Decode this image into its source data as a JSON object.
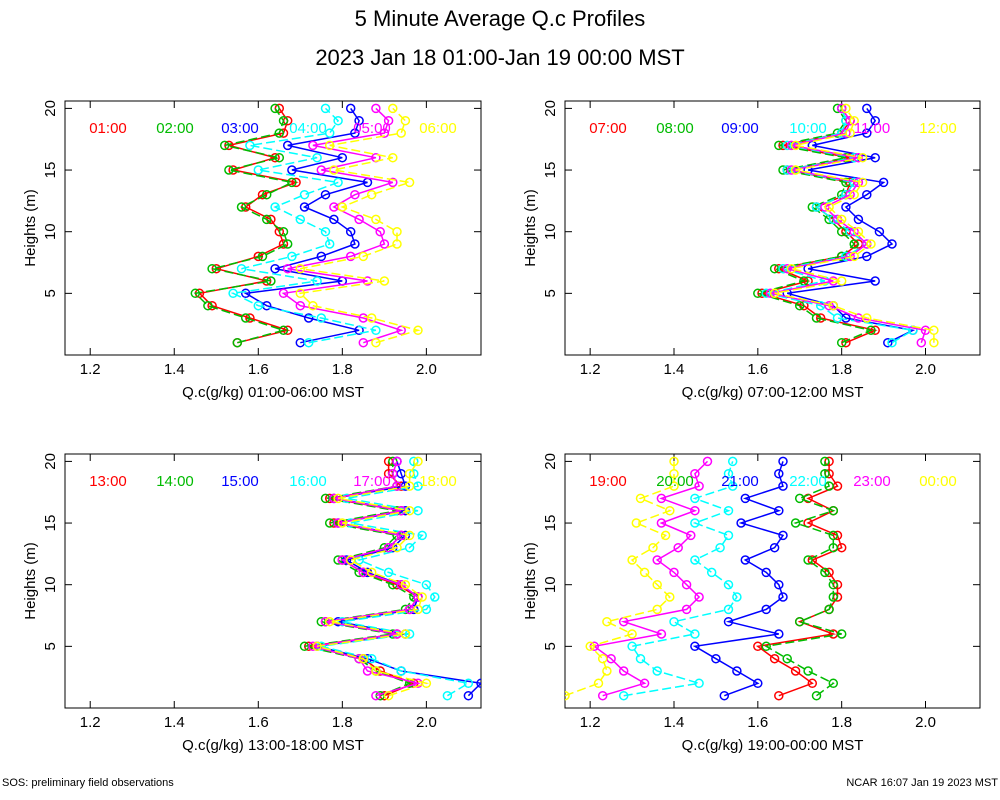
{
  "header": {
    "title": "5 Minute Average Q.c Profiles",
    "subtitle": "2023 Jan 18 01:00-Jan 19 00:00 MST"
  },
  "footer": {
    "left": "SOS: preliminary field observations",
    "right": "NCAR 16:07 Jan 19 2023 MST"
  },
  "colors": [
    "#ff0000",
    "#00bb00",
    "#0000ff",
    "#00ffff",
    "#ff00ff",
    "#ffff00"
  ],
  "chart_data": [
    {
      "type": "line",
      "xlabel": "Q.c(g/kg) 01:00-06:00 MST",
      "ylabel": "Heights (m)",
      "xlim": [
        1.14,
        2.13
      ],
      "ylim": [
        0,
        20.6
      ],
      "xticks": [
        "1.2",
        "1.4",
        "1.6",
        "1.8",
        "2.0"
      ],
      "yticks": [
        "5",
        "10",
        "15",
        "20"
      ],
      "heights": [
        1,
        2,
        3,
        4,
        5,
        6,
        7,
        8,
        9,
        10,
        11,
        12,
        13,
        14,
        15,
        16,
        17,
        18,
        19,
        20
      ],
      "series": [
        {
          "name": "01:00",
          "values": [
            1.55,
            1.67,
            1.58,
            1.49,
            1.46,
            1.62,
            1.5,
            1.6,
            1.66,
            1.65,
            1.63,
            1.57,
            1.61,
            1.69,
            1.54,
            1.64,
            1.53,
            1.66,
            1.67,
            1.65
          ]
        },
        {
          "name": "02:00",
          "values": [
            1.55,
            1.66,
            1.57,
            1.48,
            1.45,
            1.63,
            1.49,
            1.61,
            1.67,
            1.66,
            1.62,
            1.56,
            1.62,
            1.68,
            1.53,
            1.65,
            1.52,
            1.65,
            1.66,
            1.64
          ]
        },
        {
          "name": "03:00",
          "values": [
            1.7,
            1.84,
            1.72,
            1.62,
            1.57,
            1.8,
            1.64,
            1.75,
            1.83,
            1.82,
            1.78,
            1.71,
            1.76,
            1.86,
            1.68,
            1.8,
            1.67,
            1.83,
            1.84,
            1.82
          ]
        },
        {
          "name": "04:00",
          "values": [
            1.72,
            1.88,
            1.75,
            1.6,
            1.54,
            1.74,
            1.56,
            1.68,
            1.77,
            1.76,
            1.7,
            1.64,
            1.71,
            1.79,
            1.6,
            1.74,
            1.58,
            1.77,
            1.79,
            1.76
          ]
        },
        {
          "name": "05:00",
          "values": [
            1.85,
            1.94,
            1.85,
            1.7,
            1.66,
            1.86,
            1.67,
            1.82,
            1.9,
            1.89,
            1.84,
            1.78,
            1.83,
            1.92,
            1.75,
            1.88,
            1.73,
            1.9,
            1.91,
            1.88
          ]
        },
        {
          "name": "06:00",
          "values": [
            1.88,
            1.98,
            1.87,
            1.73,
            1.7,
            1.9,
            1.7,
            1.85,
            1.93,
            1.93,
            1.88,
            1.8,
            1.87,
            1.96,
            1.78,
            1.92,
            1.77,
            1.94,
            1.95,
            1.92
          ]
        }
      ]
    },
    {
      "type": "line",
      "xlabel": "Q.c(g/kg) 07:00-12:00 MST",
      "ylabel": "Heights (m)",
      "xlim": [
        1.14,
        2.13
      ],
      "ylim": [
        0,
        20.6
      ],
      "xticks": [
        "1.2",
        "1.4",
        "1.6",
        "1.8",
        "2.0"
      ],
      "yticks": [
        "5",
        "10",
        "15",
        "20"
      ],
      "heights": [
        1,
        2,
        3,
        4,
        5,
        6,
        7,
        8,
        9,
        10,
        11,
        12,
        13,
        14,
        15,
        16,
        17,
        18,
        19,
        20
      ],
      "series": [
        {
          "name": "07:00",
          "values": [
            1.81,
            1.88,
            1.75,
            1.71,
            1.61,
            1.72,
            1.65,
            1.8,
            1.84,
            1.81,
            1.78,
            1.74,
            1.81,
            1.82,
            1.67,
            1.82,
            1.66,
            1.8,
            1.82,
            1.8
          ]
        },
        {
          "name": "08:00",
          "values": [
            1.8,
            1.87,
            1.74,
            1.7,
            1.6,
            1.71,
            1.64,
            1.8,
            1.83,
            1.8,
            1.77,
            1.73,
            1.8,
            1.81,
            1.66,
            1.81,
            1.65,
            1.79,
            1.81,
            1.79
          ]
        },
        {
          "name": "09:00",
          "values": [
            1.91,
            1.97,
            1.81,
            1.78,
            1.67,
            1.88,
            1.72,
            1.86,
            1.92,
            1.89,
            1.84,
            1.81,
            1.86,
            1.9,
            1.72,
            1.88,
            1.73,
            1.86,
            1.88,
            1.86
          ]
        },
        {
          "name": "10:00",
          "values": [
            1.92,
            1.97,
            1.79,
            1.75,
            1.62,
            1.76,
            1.66,
            1.81,
            1.86,
            1.82,
            1.78,
            1.74,
            1.81,
            1.83,
            1.67,
            1.83,
            1.67,
            1.8,
            1.81,
            1.8
          ]
        },
        {
          "name": "11:00",
          "values": [
            1.99,
            2.0,
            1.84,
            1.77,
            1.63,
            1.78,
            1.67,
            1.82,
            1.86,
            1.83,
            1.79,
            1.76,
            1.82,
            1.84,
            1.68,
            1.84,
            1.68,
            1.81,
            1.82,
            1.8
          ]
        },
        {
          "name": "12:00",
          "values": [
            2.02,
            2.02,
            1.86,
            1.78,
            1.64,
            1.8,
            1.68,
            1.83,
            1.87,
            1.84,
            1.8,
            1.77,
            1.83,
            1.85,
            1.69,
            1.85,
            1.69,
            1.82,
            1.83,
            1.81
          ]
        }
      ]
    },
    {
      "type": "line",
      "xlabel": "Q.c(g/kg) 13:00-18:00 MST",
      "ylabel": "Heights (m)",
      "xlim": [
        1.14,
        2.13
      ],
      "ylim": [
        0,
        20.6
      ],
      "xticks": [
        "1.2",
        "1.4",
        "1.6",
        "1.8",
        "2.0"
      ],
      "yticks": [
        "5",
        "10",
        "15",
        "20"
      ],
      "heights": [
        1,
        2,
        3,
        4,
        5,
        6,
        7,
        8,
        9,
        10,
        11,
        12,
        13,
        14,
        15,
        16,
        17,
        18,
        19,
        20
      ],
      "series": [
        {
          "name": "13:00",
          "values": [
            1.9,
            1.97,
            1.89,
            1.85,
            1.72,
            1.93,
            1.76,
            1.96,
            1.98,
            1.93,
            1.85,
            1.8,
            1.91,
            1.94,
            1.78,
            1.94,
            1.77,
            1.94,
            1.91,
            1.91
          ]
        },
        {
          "name": "14:00",
          "values": [
            1.89,
            1.96,
            1.88,
            1.84,
            1.71,
            1.92,
            1.75,
            1.95,
            1.97,
            1.92,
            1.84,
            1.79,
            1.9,
            1.93,
            1.77,
            1.93,
            1.76,
            1.93,
            1.92,
            1.92
          ]
        },
        {
          "name": "15:00",
          "values": [
            2.1,
            2.13,
            1.94,
            1.86,
            1.74,
            1.95,
            1.79,
            1.97,
            1.98,
            1.94,
            1.86,
            1.81,
            1.92,
            1.95,
            1.79,
            1.95,
            1.78,
            1.95,
            1.94,
            1.93
          ]
        },
        {
          "name": "16:00",
          "values": [
            2.05,
            2.1,
            1.94,
            1.87,
            1.75,
            1.96,
            1.8,
            2.0,
            2.02,
            2.0,
            1.91,
            1.84,
            1.96,
            1.99,
            1.82,
            1.98,
            1.81,
            1.98,
            1.97,
            1.97
          ]
        },
        {
          "name": "17:00",
          "values": [
            1.88,
            1.98,
            1.86,
            1.84,
            1.73,
            1.93,
            1.76,
            1.96,
            1.98,
            1.94,
            1.85,
            1.8,
            1.91,
            1.94,
            1.79,
            1.94,
            1.78,
            1.93,
            1.92,
            1.93
          ]
        },
        {
          "name": "18:00",
          "values": [
            1.91,
            2.0,
            1.88,
            1.85,
            1.74,
            1.95,
            1.77,
            1.98,
            1.99,
            1.95,
            1.87,
            1.82,
            1.93,
            1.96,
            1.8,
            1.96,
            1.79,
            1.96,
            1.96,
            1.98
          ]
        }
      ]
    },
    {
      "type": "line",
      "xlabel": "Q.c(g/kg) 19:00-00:00 MST",
      "ylabel": "Heights (m)",
      "xlim": [
        1.14,
        2.13
      ],
      "ylim": [
        0,
        20.6
      ],
      "xticks": [
        "1.2",
        "1.4",
        "1.6",
        "1.8",
        "2.0"
      ],
      "yticks": [
        "5",
        "10",
        "15",
        "20"
      ],
      "heights": [
        1,
        2,
        3,
        4,
        5,
        6,
        7,
        8,
        9,
        10,
        11,
        12,
        13,
        14,
        15,
        16,
        17,
        18,
        19,
        20
      ],
      "series": [
        {
          "name": "19:00",
          "values": [
            1.65,
            1.73,
            1.69,
            1.64,
            1.6,
            1.78,
            1.7,
            1.77,
            1.79,
            1.79,
            1.77,
            1.73,
            1.8,
            1.79,
            1.72,
            1.78,
            1.72,
            1.79,
            1.77,
            1.77
          ]
        },
        {
          "name": "20:00",
          "values": [
            1.74,
            1.78,
            1.72,
            1.67,
            1.62,
            1.8,
            1.7,
            1.77,
            1.78,
            1.78,
            1.76,
            1.72,
            1.78,
            1.78,
            1.69,
            1.78,
            1.7,
            1.77,
            1.76,
            1.76
          ]
        },
        {
          "name": "21:00",
          "values": [
            1.52,
            1.6,
            1.55,
            1.5,
            1.45,
            1.65,
            1.53,
            1.62,
            1.66,
            1.65,
            1.62,
            1.57,
            1.64,
            1.66,
            1.56,
            1.65,
            1.57,
            1.66,
            1.65,
            1.66
          ]
        },
        {
          "name": "22:00",
          "values": [
            1.28,
            1.46,
            1.36,
            1.32,
            1.3,
            1.45,
            1.4,
            1.53,
            1.55,
            1.53,
            1.49,
            1.45,
            1.51,
            1.53,
            1.45,
            1.53,
            1.45,
            1.54,
            1.53,
            1.54
          ]
        },
        {
          "name": "23:00",
          "values": [
            1.23,
            1.33,
            1.28,
            1.25,
            1.21,
            1.37,
            1.28,
            1.43,
            1.46,
            1.43,
            1.4,
            1.36,
            1.41,
            1.44,
            1.37,
            1.45,
            1.37,
            1.46,
            1.45,
            1.48
          ]
        },
        {
          "name": "00:00",
          "values": [
            1.14,
            1.22,
            1.24,
            1.23,
            1.2,
            1.3,
            1.24,
            1.36,
            1.39,
            1.36,
            1.33,
            1.3,
            1.35,
            1.38,
            1.31,
            1.39,
            1.32,
            1.4,
            1.4,
            1.4
          ]
        }
      ]
    }
  ]
}
